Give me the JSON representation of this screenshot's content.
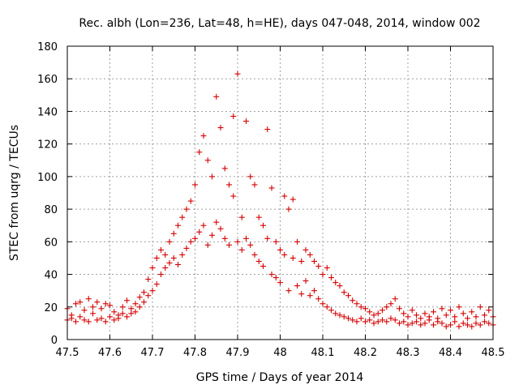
{
  "chart_data": {
    "type": "scatter",
    "title": "Rec. albh (Lon=236, Lat=48, h=HE), days 047-048, 2014, window 002",
    "xlabel": "GPS time / Days of year 2014",
    "ylabel": "STEC from uqrg / TECUs",
    "xlim": [
      47.5,
      48.5
    ],
    "ylim": [
      0,
      180
    ],
    "x_ticks": [
      "47.5",
      "47.6",
      "47.7",
      "47.8",
      "47.9",
      "48",
      "48.1",
      "48.2",
      "48.3",
      "48.4",
      "48.5"
    ],
    "y_ticks": [
      "0",
      "20",
      "40",
      "60",
      "80",
      "100",
      "120",
      "140",
      "160",
      "180"
    ],
    "grid": true,
    "marker": "+",
    "color": "#d40000",
    "series": [
      {
        "name": "STEC",
        "points": [
          [
            47.5,
            12
          ],
          [
            47.5,
            19
          ],
          [
            47.51,
            13
          ],
          [
            47.51,
            15
          ],
          [
            47.52,
            11
          ],
          [
            47.52,
            22
          ],
          [
            47.53,
            14
          ],
          [
            47.53,
            23
          ],
          [
            47.54,
            12
          ],
          [
            47.54,
            18
          ],
          [
            47.55,
            25
          ],
          [
            47.55,
            11
          ],
          [
            47.56,
            16
          ],
          [
            47.56,
            20
          ],
          [
            47.57,
            12
          ],
          [
            47.57,
            23
          ],
          [
            47.58,
            13
          ],
          [
            47.58,
            19
          ],
          [
            47.59,
            11
          ],
          [
            47.59,
            22
          ],
          [
            47.6,
            14
          ],
          [
            47.6,
            21
          ],
          [
            47.61,
            12
          ],
          [
            47.61,
            17
          ],
          [
            47.62,
            15
          ],
          [
            47.62,
            13
          ],
          [
            47.63,
            20
          ],
          [
            47.63,
            16
          ],
          [
            47.64,
            24
          ],
          [
            47.64,
            14
          ],
          [
            47.65,
            19
          ],
          [
            47.65,
            16
          ],
          [
            47.66,
            22
          ],
          [
            47.66,
            17
          ],
          [
            47.67,
            26
          ],
          [
            47.67,
            20
          ],
          [
            47.68,
            29
          ],
          [
            47.68,
            23
          ],
          [
            47.69,
            37
          ],
          [
            47.69,
            27
          ],
          [
            47.7,
            44
          ],
          [
            47.7,
            30
          ],
          [
            47.71,
            50
          ],
          [
            47.71,
            34
          ],
          [
            47.72,
            55
          ],
          [
            47.72,
            40
          ],
          [
            47.73,
            52
          ],
          [
            47.73,
            44
          ],
          [
            47.74,
            60
          ],
          [
            47.74,
            47
          ],
          [
            47.75,
            65
          ],
          [
            47.75,
            50
          ],
          [
            47.76,
            70
          ],
          [
            47.76,
            46
          ],
          [
            47.77,
            75
          ],
          [
            47.77,
            52
          ],
          [
            47.78,
            80
          ],
          [
            47.78,
            56
          ],
          [
            47.79,
            85
          ],
          [
            47.79,
            60
          ],
          [
            47.8,
            95
          ],
          [
            47.8,
            62
          ],
          [
            47.81,
            115
          ],
          [
            47.81,
            66
          ],
          [
            47.82,
            125
          ],
          [
            47.82,
            70
          ],
          [
            47.83,
            110
          ],
          [
            47.83,
            58
          ],
          [
            47.84,
            100
          ],
          [
            47.84,
            64
          ],
          [
            47.85,
            149
          ],
          [
            47.85,
            72
          ],
          [
            47.86,
            130
          ],
          [
            47.86,
            68
          ],
          [
            47.87,
            105
          ],
          [
            47.87,
            62
          ],
          [
            47.88,
            95
          ],
          [
            47.88,
            58
          ],
          [
            47.89,
            137
          ],
          [
            47.89,
            88
          ],
          [
            47.9,
            163
          ],
          [
            47.9,
            60
          ],
          [
            47.91,
            75
          ],
          [
            47.91,
            55
          ],
          [
            47.92,
            134
          ],
          [
            47.92,
            62
          ],
          [
            47.93,
            100
          ],
          [
            47.93,
            58
          ],
          [
            47.94,
            95
          ],
          [
            47.94,
            52
          ],
          [
            47.95,
            75
          ],
          [
            47.95,
            48
          ],
          [
            47.96,
            70
          ],
          [
            47.96,
            45
          ],
          [
            47.97,
            129
          ],
          [
            47.97,
            62
          ],
          [
            47.98,
            93
          ],
          [
            47.98,
            40
          ],
          [
            47.99,
            60
          ],
          [
            47.99,
            38
          ],
          [
            48.0,
            55
          ],
          [
            48.0,
            35
          ],
          [
            48.01,
            88
          ],
          [
            48.01,
            52
          ],
          [
            48.02,
            80
          ],
          [
            48.02,
            30
          ],
          [
            48.03,
            86
          ],
          [
            48.03,
            50
          ],
          [
            48.04,
            60
          ],
          [
            48.04,
            33
          ],
          [
            48.05,
            48
          ],
          [
            48.05,
            28
          ],
          [
            48.06,
            55
          ],
          [
            48.06,
            36
          ],
          [
            48.07,
            52
          ],
          [
            48.07,
            27
          ],
          [
            48.08,
            48
          ],
          [
            48.08,
            30
          ],
          [
            48.09,
            45
          ],
          [
            48.09,
            25
          ],
          [
            48.1,
            40
          ],
          [
            48.1,
            22
          ],
          [
            48.11,
            44
          ],
          [
            48.11,
            20
          ],
          [
            48.12,
            38
          ],
          [
            48.12,
            18
          ],
          [
            48.13,
            35
          ],
          [
            48.13,
            16
          ],
          [
            48.14,
            33
          ],
          [
            48.14,
            15
          ],
          [
            48.15,
            29
          ],
          [
            48.15,
            14
          ],
          [
            48.16,
            27
          ],
          [
            48.16,
            13
          ],
          [
            48.17,
            24
          ],
          [
            48.17,
            12
          ],
          [
            48.18,
            22
          ],
          [
            48.18,
            11
          ],
          [
            48.19,
            20
          ],
          [
            48.19,
            13
          ],
          [
            48.2,
            19
          ],
          [
            48.2,
            11
          ],
          [
            48.21,
            17
          ],
          [
            48.21,
            12
          ],
          [
            48.22,
            15
          ],
          [
            48.22,
            10
          ],
          [
            48.23,
            16
          ],
          [
            48.23,
            11
          ],
          [
            48.24,
            18
          ],
          [
            48.24,
            12
          ],
          [
            48.25,
            20
          ],
          [
            48.25,
            11
          ],
          [
            48.26,
            22
          ],
          [
            48.26,
            13
          ],
          [
            48.27,
            25
          ],
          [
            48.27,
            12
          ],
          [
            48.28,
            19
          ],
          [
            48.28,
            10
          ],
          [
            48.29,
            16
          ],
          [
            48.29,
            11
          ],
          [
            48.3,
            14
          ],
          [
            48.3,
            9
          ],
          [
            48.31,
            18
          ],
          [
            48.31,
            10
          ],
          [
            48.32,
            15
          ],
          [
            48.32,
            11
          ],
          [
            48.33,
            13
          ],
          [
            48.33,
            9
          ],
          [
            48.34,
            16
          ],
          [
            48.34,
            10
          ],
          [
            48.35,
            14
          ],
          [
            48.35,
            12
          ],
          [
            48.36,
            17
          ],
          [
            48.36,
            9
          ],
          [
            48.37,
            13
          ],
          [
            48.37,
            11
          ],
          [
            48.38,
            19
          ],
          [
            48.38,
            10
          ],
          [
            48.39,
            15
          ],
          [
            48.39,
            8
          ],
          [
            48.4,
            18
          ],
          [
            48.4,
            9
          ],
          [
            48.41,
            14
          ],
          [
            48.41,
            11
          ],
          [
            48.42,
            20
          ],
          [
            48.42,
            8
          ],
          [
            48.43,
            16
          ],
          [
            48.43,
            10
          ],
          [
            48.44,
            13
          ],
          [
            48.44,
            9
          ],
          [
            48.45,
            17
          ],
          [
            48.45,
            8
          ],
          [
            48.46,
            14
          ],
          [
            48.46,
            10
          ],
          [
            48.47,
            20
          ],
          [
            48.47,
            9
          ],
          [
            48.48,
            15
          ],
          [
            48.48,
            11
          ],
          [
            48.49,
            18
          ],
          [
            48.49,
            10
          ],
          [
            48.5,
            14
          ],
          [
            48.5,
            9
          ]
        ]
      }
    ]
  }
}
